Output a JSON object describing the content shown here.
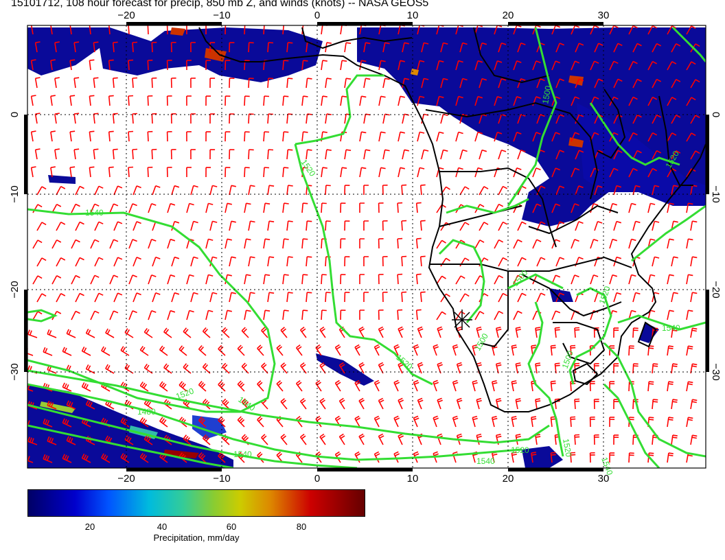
{
  "title": "15101712, 108 hour forecast for precip, 850 mb Z, and winds (knots) -- NASA GEOS5",
  "map": {
    "lon_ticks": [
      "−20",
      "−10",
      "0",
      "10",
      "20",
      "30"
    ],
    "lat_ticks": [
      "0",
      "−10",
      "−20",
      "−30"
    ],
    "contour_labels": [
      "1520",
      "1540",
      "1520",
      "1520",
      "1540",
      "1500",
      "1520",
      "1540",
      "1500",
      "1520",
      "1520",
      "1540",
      "1520",
      "1540",
      "1500",
      "1480",
      "1540",
      "1500"
    ],
    "colors": {
      "precip_low": "#000088",
      "precip_high": "#660000",
      "contour": "#33dd33",
      "wind_barbs": "#ff0000",
      "coast": "#000000"
    }
  },
  "colorbar": {
    "ticks": [
      "20",
      "40",
      "60",
      "80"
    ],
    "label": "Precipitation, mm/day"
  }
}
